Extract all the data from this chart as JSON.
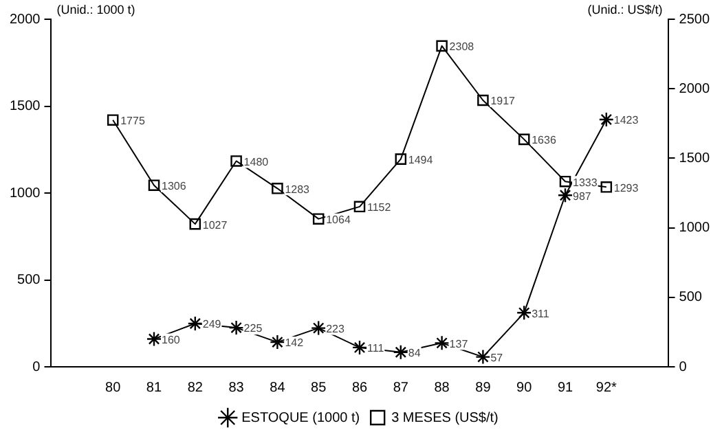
{
  "chart_data": {
    "type": "line",
    "ylabel": "(Unid.: 1000 t)",
    "y2label": "(Unid.: US$/t)",
    "categories": [
      null,
      "80",
      "81",
      "82",
      "83",
      "84",
      "85",
      "86",
      "87",
      "88",
      "89",
      "90",
      "91",
      "92*",
      null
    ],
    "series": [
      {
        "name": "ESTOQUE (1000 t)",
        "color": "#000000",
        "marker": "cross",
        "values": [
          null,
          null,
          160,
          249,
          225,
          142,
          223,
          111,
          84,
          137,
          57,
          311,
          987,
          1423,
          null
        ]
      },
      {
        "name": "3 MESES (US$/t)",
        "color": "#000000",
        "marker": "square",
        "axis": "y2",
        "values": [
          null,
          1775,
          1306,
          1027,
          1480,
          1283,
          1064,
          1152,
          1494,
          2308,
          1917,
          1636,
          1333,
          1293,
          null
        ]
      }
    ],
    "ylim": [
      0,
      2000
    ],
    "yticks": [
      0,
      500,
      1000,
      1500,
      2000
    ],
    "y2lim": [
      0,
      2500
    ],
    "y2ticks": [
      0,
      500,
      1000,
      1500,
      2000,
      2500
    ],
    "data_labels": true,
    "grid": false,
    "legend": "bottom"
  }
}
